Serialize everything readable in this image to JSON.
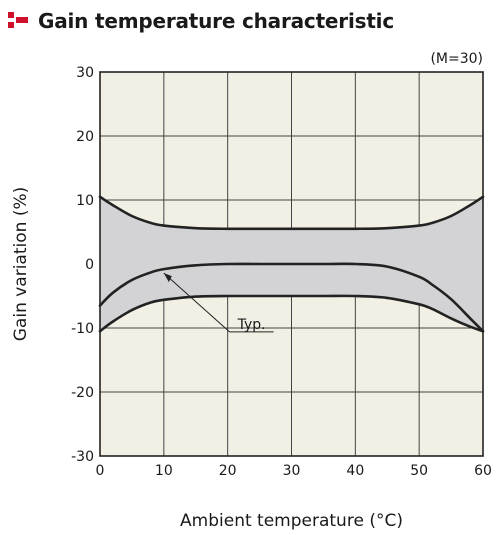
{
  "header": {
    "title": "Gain temperature characteristic",
    "marker_color": "#d0112b"
  },
  "chart_data": {
    "type": "area",
    "title": "Gain temperature characteristic",
    "note": "(M=30)",
    "xlabel": "Ambient temperature (°C)",
    "ylabel": "Gain variation (%)",
    "xlim": [
      0,
      60
    ],
    "ylim": [
      -30,
      30
    ],
    "xticks": [
      "0",
      "10",
      "20",
      "30",
      "40",
      "50",
      "60"
    ],
    "yticks": [
      "30",
      "20",
      "10",
      "0",
      "-10",
      "-20",
      "-30"
    ],
    "grid": true,
    "background_color": "#f2f0e4",
    "band_color": "#d3d3d5",
    "line_color": "#222222",
    "annotation": "Typ.",
    "series": [
      {
        "role": "upper",
        "x": [
          0,
          2,
          5,
          8,
          10,
          15,
          20,
          25,
          30,
          35,
          40,
          45,
          50,
          52,
          55,
          58,
          60
        ],
        "y": [
          10.5,
          9.2,
          7.5,
          6.4,
          6.0,
          5.6,
          5.5,
          5.5,
          5.5,
          5.5,
          5.5,
          5.6,
          6.0,
          6.4,
          7.5,
          9.2,
          10.5
        ]
      },
      {
        "role": "typical",
        "x": [
          0,
          2,
          5,
          8,
          10,
          15,
          20,
          25,
          30,
          35,
          40,
          45,
          50,
          52,
          55,
          58,
          60
        ],
        "y": [
          -6.5,
          -4.5,
          -2.5,
          -1.3,
          -0.8,
          -0.2,
          0,
          0,
          0,
          0,
          0,
          -0.4,
          -2.0,
          -3.2,
          -5.5,
          -8.5,
          -10.5
        ]
      },
      {
        "role": "lower",
        "x": [
          0,
          2,
          5,
          8,
          10,
          15,
          20,
          25,
          30,
          35,
          40,
          45,
          50,
          52,
          55,
          58,
          60
        ],
        "y": [
          -10.5,
          -9.0,
          -7.2,
          -6.0,
          -5.6,
          -5.1,
          -5.0,
          -5.0,
          -5.0,
          -5.0,
          -5.0,
          -5.3,
          -6.3,
          -7.0,
          -8.5,
          -9.8,
          -10.5
        ]
      }
    ]
  }
}
